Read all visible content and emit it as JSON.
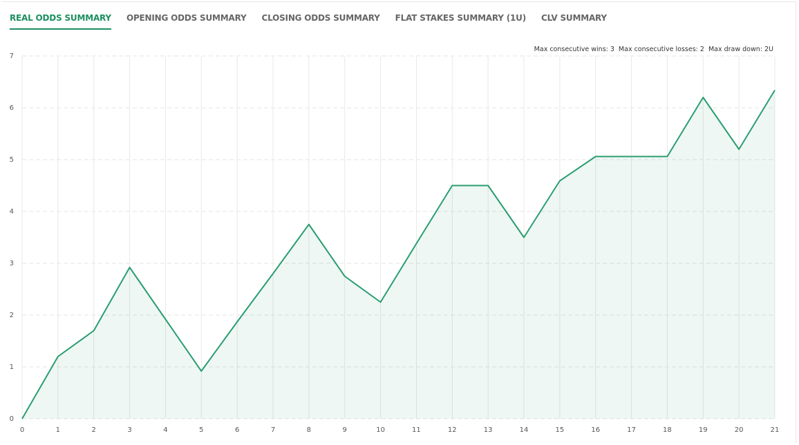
{
  "tabs": [
    "REAL ODDS SUMMARY",
    "OPENING ODDS SUMMARY",
    "CLOSING ODDS SUMMARY",
    "FLAT STAKES SUMMARY (1U)",
    "CLV SUMMARY"
  ],
  "active_tab": 0,
  "stats": [
    "Max consecutive wins: 3",
    "Max consecutive losses: 2",
    "Max draw down: 2U"
  ],
  "chart_data": {
    "type": "area",
    "x": [
      0,
      1,
      2,
      3,
      4,
      5,
      6,
      7,
      8,
      9,
      10,
      11,
      12,
      13,
      14,
      15,
      16,
      17,
      18,
      19,
      20,
      21
    ],
    "series": [
      {
        "color": "#2a9d6f",
        "values": [
          0,
          1.2,
          1.7,
          2.92,
          1.92,
          0.92,
          1.87,
          2.8,
          3.75,
          2.75,
          2.25,
          3.38,
          4.5,
          4.5,
          3.5,
          4.59,
          5.06,
          5.06,
          5.06,
          6.2,
          5.2,
          6.34
        ]
      }
    ],
    "xlim": [
      0,
      21
    ],
    "xticks": [
      0,
      1,
      2,
      3,
      4,
      5,
      6,
      7,
      8,
      9,
      10,
      11,
      12,
      13,
      14,
      15,
      16,
      17,
      18,
      19,
      20,
      21
    ],
    "ylim": [
      0,
      7
    ],
    "yticks": [
      0,
      1,
      2,
      3,
      4,
      5,
      6,
      7
    ],
    "grid": true
  }
}
